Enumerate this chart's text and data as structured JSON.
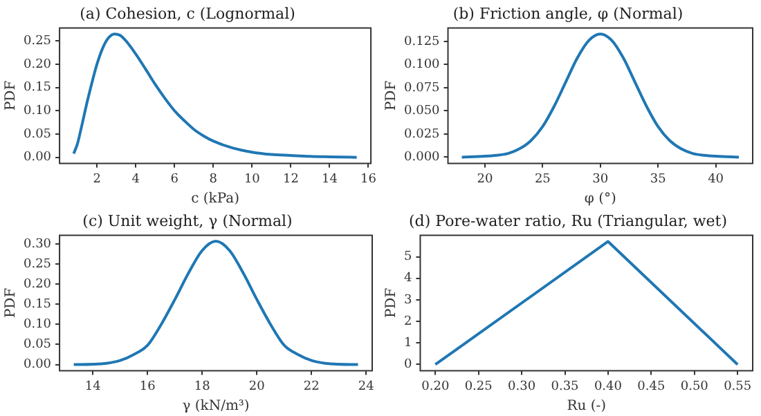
{
  "chart_data": [
    {
      "type": "line",
      "title": "(a) Cohesion, c (Lognormal)",
      "xlabel": "c (kPa)",
      "ylabel": "PDF",
      "color": "#1f77b4",
      "x": [
        0.8,
        1.0,
        1.2,
        1.5,
        1.8,
        2.0,
        2.3,
        2.6,
        2.9,
        3.2,
        3.5,
        4.0,
        4.5,
        5.0,
        5.5,
        6.0,
        6.5,
        7.0,
        7.5,
        8.0,
        9.0,
        10.0,
        11.0,
        12.0,
        13.0,
        14.0,
        15.4
      ],
      "values": [
        0.008,
        0.03,
        0.065,
        0.12,
        0.17,
        0.2,
        0.235,
        0.257,
        0.265,
        0.262,
        0.25,
        0.222,
        0.19,
        0.157,
        0.127,
        0.1,
        0.079,
        0.06,
        0.046,
        0.035,
        0.02,
        0.011,
        0.006,
        0.004,
        0.002,
        0.001,
        0
      ],
      "xlim": [
        0.07,
        16.13
      ],
      "ylim": [
        -0.013,
        0.278
      ],
      "xticks": [
        2,
        4,
        6,
        8,
        10,
        12,
        14,
        16
      ],
      "yticks": [
        {
          "value": 0,
          "label": "0.00"
        },
        {
          "value": 0.05,
          "label": "0.05"
        },
        {
          "value": 0.1,
          "label": "0.10"
        },
        {
          "value": 0.15,
          "label": "0.15"
        },
        {
          "value": 0.2,
          "label": "0.20"
        },
        {
          "value": 0.25,
          "label": "0.25"
        }
      ],
      "grid": false,
      "legend": false
    },
    {
      "type": "line",
      "title": "(b) Friction angle, φ (Normal)",
      "xlabel": "φ (°)",
      "ylabel": "PDF",
      "color": "#1f77b4",
      "x": [
        18,
        20,
        21,
        22,
        23,
        24,
        25,
        26,
        27,
        28,
        29,
        30,
        31,
        32,
        33,
        34,
        35,
        36,
        37,
        38,
        39,
        40,
        42
      ],
      "values": [
        0,
        0.001,
        0.002,
        0.004,
        0.009,
        0.018,
        0.033,
        0.055,
        0.081,
        0.107,
        0.126,
        0.133,
        0.126,
        0.107,
        0.081,
        0.055,
        0.033,
        0.018,
        0.009,
        0.004,
        0.002,
        0.001,
        0
      ],
      "xlim": [
        16.8,
        43.2
      ],
      "ylim": [
        -0.0067,
        0.1396
      ],
      "xticks": [
        20,
        25,
        30,
        35,
        40
      ],
      "yticks": [
        {
          "value": 0,
          "label": "0.000"
        },
        {
          "value": 0.025,
          "label": "0.025"
        },
        {
          "value": 0.05,
          "label": "0.050"
        },
        {
          "value": 0.075,
          "label": "0.075"
        },
        {
          "value": 0.1,
          "label": "0.100"
        },
        {
          "value": 0.125,
          "label": "0.125"
        }
      ],
      "grid": false,
      "legend": false
    },
    {
      "type": "line",
      "title": "(c) Unit weight, γ (Normal)",
      "xlabel": "γ (kN/m³)",
      "ylabel": "PDF",
      "color": "#1f77b4",
      "x": [
        13.3,
        13.5,
        14.5,
        15.0,
        15.5,
        16.0,
        16.5,
        17.0,
        17.5,
        18.0,
        18.5,
        19.0,
        19.5,
        20.0,
        20.5,
        21.0,
        21.5,
        22.0,
        22.5,
        23.5,
        23.7
      ],
      "values": [
        0,
        0,
        0.003,
        0.01,
        0.025,
        0.048,
        0.1,
        0.162,
        0.228,
        0.284,
        0.307,
        0.284,
        0.228,
        0.162,
        0.1,
        0.048,
        0.025,
        0.01,
        0.003,
        0,
        0
      ],
      "xlim": [
        12.78,
        24.22
      ],
      "ylim": [
        -0.0153,
        0.322
      ],
      "xticks": [
        14,
        16,
        18,
        20,
        22,
        24
      ],
      "yticks": [
        {
          "value": 0,
          "label": "0.00"
        },
        {
          "value": 0.05,
          "label": "0.05"
        },
        {
          "value": 0.1,
          "label": "0.10"
        },
        {
          "value": 0.15,
          "label": "0.15"
        },
        {
          "value": 0.2,
          "label": "0.20"
        },
        {
          "value": 0.25,
          "label": "0.25"
        },
        {
          "value": 0.3,
          "label": "0.30"
        }
      ],
      "grid": false,
      "legend": false
    },
    {
      "type": "line",
      "title": "(d) Pore-water ratio, Ru (Triangular, wet)",
      "xlabel": "Ru (-)",
      "ylabel": "PDF",
      "color": "#1f77b4",
      "x": [
        0.2,
        0.4,
        0.55
      ],
      "values": [
        0,
        5.71,
        0
      ],
      "xlim": [
        0.1825,
        0.5675
      ],
      "ylim": [
        -0.286,
        6.0
      ],
      "xticks": [
        {
          "value": 0.2,
          "label": "0.20"
        },
        {
          "value": 0.25,
          "label": "0.25"
        },
        {
          "value": 0.3,
          "label": "0.30"
        },
        {
          "value": 0.35,
          "label": "0.35"
        },
        {
          "value": 0.4,
          "label": "0.40"
        },
        {
          "value": 0.45,
          "label": "0.45"
        },
        {
          "value": 0.5,
          "label": "0.50"
        },
        {
          "value": 0.55,
          "label": "0.55"
        }
      ],
      "yticks": [
        0,
        1,
        2,
        3,
        4,
        5
      ],
      "grid": false,
      "legend": false
    }
  ]
}
